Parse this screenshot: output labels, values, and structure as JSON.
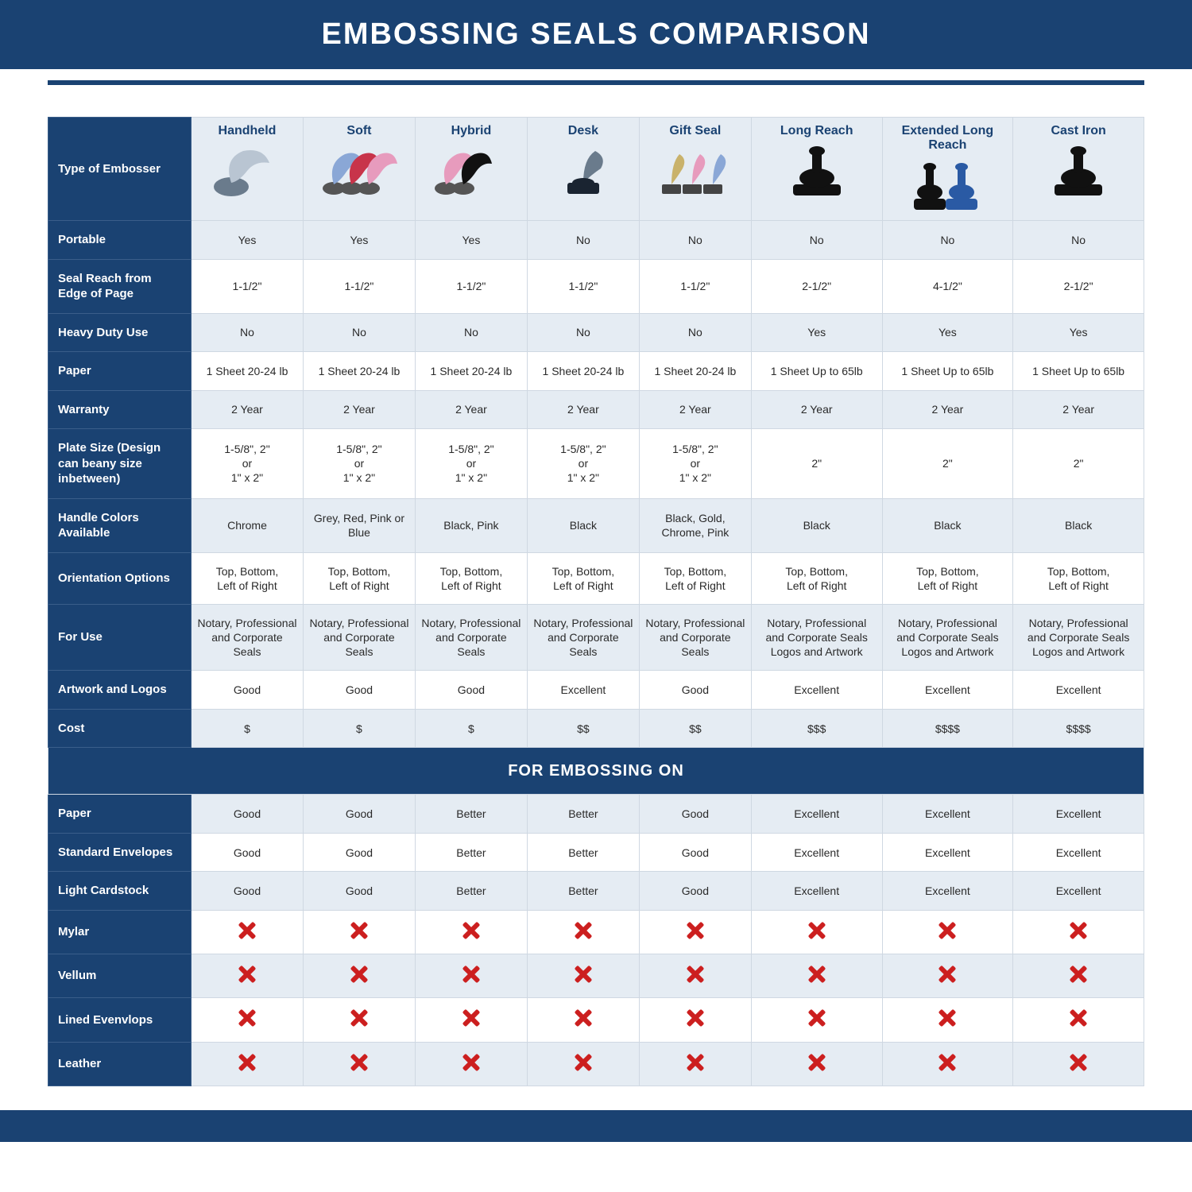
{
  "style": {
    "brand_color": "#1a4272",
    "zebra_color": "#e5ecf3",
    "grid_color": "#cfd8e2",
    "x_color": "#cc1f1f",
    "title_fontsize": 38
  },
  "title": "EMBOSSING SEALS COMPARISON",
  "first_column_header": "Type of Embosser",
  "section_header": "FOR EMBOSSING ON",
  "columns": [
    {
      "key": "handheld",
      "label": "Handheld"
    },
    {
      "key": "soft",
      "label": "Soft"
    },
    {
      "key": "hybrid",
      "label": "Hybrid"
    },
    {
      "key": "desk",
      "label": "Desk"
    },
    {
      "key": "gift",
      "label": "Gift Seal"
    },
    {
      "key": "long",
      "label": "Long Reach"
    },
    {
      "key": "xlong",
      "label": "Extended Long Reach"
    },
    {
      "key": "iron",
      "label": "Cast Iron"
    }
  ],
  "rows_top": [
    {
      "label": "Portable",
      "zebra": true,
      "cells": [
        "Yes",
        "Yes",
        "Yes",
        "No",
        "No",
        "No",
        "No",
        "No"
      ]
    },
    {
      "label": "Seal Reach from Edge of Page",
      "zebra": false,
      "cells": [
        "1-1/2\"",
        "1-1/2\"",
        "1-1/2\"",
        "1-1/2\"",
        "1-1/2\"",
        "2-1/2\"",
        "4-1/2\"",
        "2-1/2\""
      ]
    },
    {
      "label": "Heavy Duty Use",
      "zebra": true,
      "cells": [
        "No",
        "No",
        "No",
        "No",
        "No",
        "Yes",
        "Yes",
        "Yes"
      ]
    },
    {
      "label": "Paper",
      "zebra": false,
      "cells": [
        "1 Sheet 20-24 lb",
        "1 Sheet 20-24 lb",
        "1 Sheet 20-24 lb",
        "1 Sheet 20-24 lb",
        "1 Sheet 20-24 lb",
        "1 Sheet Up to 65lb",
        "1 Sheet Up to 65lb",
        "1 Sheet Up to 65lb"
      ]
    },
    {
      "label": "Warranty",
      "zebra": true,
      "cells": [
        "2 Year",
        "2 Year",
        "2 Year",
        "2 Year",
        "2 Year",
        "2 Year",
        "2 Year",
        "2 Year"
      ]
    },
    {
      "label": "Plate Size (Design can beany size inbetween)",
      "zebra": false,
      "cells": [
        "1-5/8\", 2\"\nor\n1\" x 2\"",
        "1-5/8\", 2\"\nor\n1\" x 2\"",
        "1-5/8\", 2\"\nor\n1\" x 2\"",
        "1-5/8\", 2\"\nor\n1\" x 2\"",
        "1-5/8\", 2\"\nor\n1\" x 2\"",
        "2\"",
        "2\"",
        "2\""
      ]
    },
    {
      "label": "Handle Colors Available",
      "zebra": true,
      "cells": [
        "Chrome",
        "Grey, Red, Pink or Blue",
        "Black, Pink",
        "Black",
        "Black, Gold, Chrome, Pink",
        "Black",
        "Black",
        "Black"
      ]
    },
    {
      "label": "Orientation Options",
      "zebra": false,
      "cells": [
        "Top, Bottom,\nLeft of Right",
        "Top, Bottom,\nLeft of Right",
        "Top, Bottom,\nLeft of Right",
        "Top, Bottom,\nLeft of Right",
        "Top, Bottom,\nLeft of Right",
        "Top, Bottom,\nLeft of Right",
        "Top, Bottom,\nLeft of Right",
        "Top, Bottom,\nLeft of Right"
      ]
    },
    {
      "label": "For Use",
      "zebra": true,
      "cells": [
        "Notary, Professional and Corporate Seals",
        "Notary, Professional and Corporate Seals",
        "Notary, Professional and Corporate Seals",
        "Notary, Professional and Corporate Seals",
        "Notary, Professional and Corporate Seals",
        "Notary, Professional and Corporate Seals Logos and Artwork",
        "Notary, Professional and Corporate Seals Logos and Artwork",
        "Notary, Professional and Corporate Seals Logos and Artwork"
      ]
    },
    {
      "label": "Artwork and Logos",
      "zebra": false,
      "cells": [
        "Good",
        "Good",
        "Good",
        "Excellent",
        "Good",
        "Excellent",
        "Excellent",
        "Excellent"
      ]
    },
    {
      "label": "Cost",
      "zebra": true,
      "cells": [
        "$",
        "$",
        "$",
        "$$",
        "$$",
        "$$$",
        "$$$$",
        "$$$$"
      ]
    }
  ],
  "rows_bottom": [
    {
      "label": "Paper",
      "zebra": true,
      "cells": [
        "Good",
        "Good",
        "Better",
        "Better",
        "Good",
        "Excellent",
        "Excellent",
        "Excellent"
      ]
    },
    {
      "label": "Standard Envelopes",
      "zebra": false,
      "cells": [
        "Good",
        "Good",
        "Better",
        "Better",
        "Good",
        "Excellent",
        "Excellent",
        "Excellent"
      ]
    },
    {
      "label": "Light Cardstock",
      "zebra": true,
      "cells": [
        "Good",
        "Good",
        "Better",
        "Better",
        "Good",
        "Excellent",
        "Excellent",
        "Excellent"
      ]
    },
    {
      "label": "Mylar",
      "zebra": false,
      "cells": [
        "X",
        "X",
        "X",
        "X",
        "X",
        "X",
        "X",
        "X"
      ]
    },
    {
      "label": "Vellum",
      "zebra": true,
      "cells": [
        "X",
        "X",
        "X",
        "X",
        "X",
        "X",
        "X",
        "X"
      ]
    },
    {
      "label": "Lined Evenvlops",
      "zebra": false,
      "cells": [
        "X",
        "X",
        "X",
        "X",
        "X",
        "X",
        "X",
        "X"
      ]
    },
    {
      "label": "Leather",
      "zebra": true,
      "cells": [
        "X",
        "X",
        "X",
        "X",
        "X",
        "X",
        "X",
        "X"
      ]
    }
  ],
  "embosser_icons": {
    "handheld": {
      "type": "plier",
      "body": "#b9c5d2",
      "accent": "#6a7b8c"
    },
    "soft": {
      "type": "plier3",
      "colors": [
        "#8aa7d6",
        "#c8344a",
        "#e79bbd"
      ]
    },
    "hybrid": {
      "type": "plier2",
      "colors": [
        "#e79bbd",
        "#111111"
      ]
    },
    "desk": {
      "type": "desk",
      "body": "#1a2431",
      "accent": "#6a7b8c"
    },
    "gift": {
      "type": "desk3",
      "colors": [
        "#c9b26b",
        "#e79bbd",
        "#8aa7d6"
      ]
    },
    "long": {
      "type": "heavy",
      "body": "#111111"
    },
    "xlong": {
      "type": "heavy2",
      "colors": [
        "#111111",
        "#2a5aa4"
      ]
    },
    "iron": {
      "type": "heavy",
      "body": "#111111"
    }
  }
}
